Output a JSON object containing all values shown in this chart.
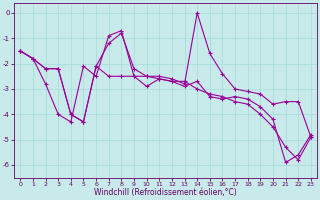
{
  "xlabel": "Windchill (Refroidissement éolien,°C)",
  "bg_color": "#c8eaea",
  "line_color": "#990099",
  "grid_color": "#aadddd",
  "xlim": [
    -0.5,
    23.5
  ],
  "ylim": [
    -6.5,
    0.4
  ],
  "yticks": [
    0,
    -1,
    -2,
    -3,
    -4,
    -5,
    -6
  ],
  "xticks": [
    0,
    1,
    2,
    3,
    4,
    5,
    6,
    7,
    8,
    9,
    10,
    11,
    12,
    13,
    14,
    15,
    16,
    17,
    18,
    19,
    20,
    21,
    22,
    23
  ],
  "line1_x": [
    0,
    1,
    2,
    3,
    4,
    5,
    6,
    7,
    8,
    9,
    10,
    11,
    12,
    13,
    14,
    15,
    16,
    17,
    18,
    19,
    20,
    21,
    22,
    23
  ],
  "line1_y": [
    -1.5,
    -1.8,
    -2.2,
    -2.2,
    -4.0,
    -4.3,
    -2.1,
    -2.5,
    -2.5,
    -2.5,
    -2.5,
    -2.6,
    -2.7,
    -2.7,
    -3.0,
    -3.2,
    -3.3,
    -3.5,
    -3.6,
    -4.0,
    -4.5,
    -5.3,
    -5.8,
    -4.9
  ],
  "line2_x": [
    0,
    1,
    2,
    3,
    4,
    5,
    6,
    7,
    8,
    9,
    10,
    11,
    12,
    13,
    14,
    15,
    16,
    17,
    18,
    19,
    20,
    21,
    22,
    23
  ],
  "line2_y": [
    -1.5,
    -1.8,
    -2.2,
    -2.2,
    -4.0,
    -4.3,
    -2.1,
    -1.2,
    -0.8,
    -2.2,
    -2.5,
    -2.5,
    -2.6,
    -2.8,
    0.0,
    -1.6,
    -2.4,
    -3.0,
    -3.1,
    -3.2,
    -3.6,
    -3.5,
    -3.5,
    -4.9
  ],
  "line3_x": [
    0,
    1,
    2,
    3,
    4,
    5,
    6,
    7,
    8,
    9,
    10,
    11,
    12,
    13,
    14,
    15,
    16,
    17,
    18,
    19,
    20,
    21,
    22,
    23
  ],
  "line3_y": [
    -1.5,
    -1.8,
    -2.8,
    -4.0,
    -4.3,
    -2.1,
    -2.5,
    -0.9,
    -0.7,
    -2.5,
    -2.9,
    -2.6,
    -2.7,
    -2.9,
    -2.7,
    -3.3,
    -3.4,
    -3.3,
    -3.4,
    -3.7,
    -4.2,
    -5.9,
    -5.6,
    -4.8
  ]
}
